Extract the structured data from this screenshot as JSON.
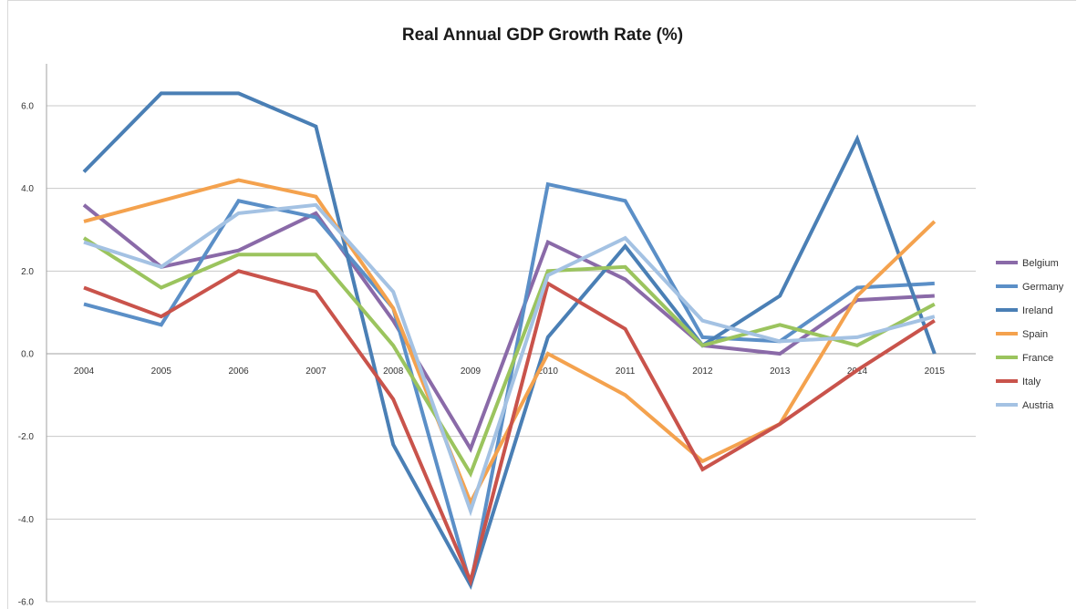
{
  "chart_data": {
    "type": "line",
    "title": "Real Annual GDP Growth Rate (%)",
    "xlabel": "",
    "ylabel": "",
    "categories": [
      "2004",
      "2005",
      "2006",
      "2007",
      "2008",
      "2009",
      "2010",
      "2011",
      "2012",
      "2013",
      "2014",
      "2015"
    ],
    "ylim": [
      -6.0,
      6.0
    ],
    "yticks": [
      "6.0",
      "4.0",
      "2.0",
      "0.0",
      "-2.0",
      "-4.0",
      "-6.0"
    ],
    "grid": true,
    "legend_position": "right",
    "series": [
      {
        "name": "Belgium",
        "color": "#8a6aa8",
        "values": [
          3.6,
          2.1,
          2.5,
          3.4,
          0.8,
          -2.3,
          2.7,
          1.8,
          0.2,
          0.0,
          1.3,
          1.4
        ]
      },
      {
        "name": "Germany",
        "color": "#5b8fc7",
        "values": [
          1.2,
          0.7,
          3.7,
          3.3,
          1.1,
          -5.6,
          4.1,
          3.7,
          0.4,
          0.3,
          1.6,
          1.7
        ]
      },
      {
        "name": "Ireland",
        "color": "#4a7fb5",
        "values": [
          4.4,
          6.3,
          6.3,
          5.5,
          -2.2,
          -5.6,
          0.4,
          2.6,
          0.2,
          1.4,
          5.2,
          0.0
        ]
      },
      {
        "name": "Spain",
        "color": "#f4a24e",
        "values": [
          3.2,
          3.7,
          4.2,
          3.8,
          1.1,
          -3.6,
          0.0,
          -1.0,
          -2.6,
          -1.7,
          1.4,
          3.2
        ]
      },
      {
        "name": "France",
        "color": "#9bc45e",
        "values": [
          2.8,
          1.6,
          2.4,
          2.4,
          0.2,
          -2.9,
          2.0,
          2.1,
          0.2,
          0.7,
          0.2,
          1.2
        ]
      },
      {
        "name": "Italy",
        "color": "#c9534b",
        "values": [
          1.6,
          0.9,
          2.0,
          1.5,
          -1.1,
          -5.5,
          1.7,
          0.6,
          -2.8,
          -1.7,
          -0.4,
          0.8
        ]
      },
      {
        "name": "Austria",
        "color": "#a4c2e3",
        "values": [
          2.7,
          2.1,
          3.4,
          3.6,
          1.5,
          -3.8,
          1.9,
          2.8,
          0.8,
          0.3,
          0.4,
          0.9
        ]
      }
    ]
  }
}
